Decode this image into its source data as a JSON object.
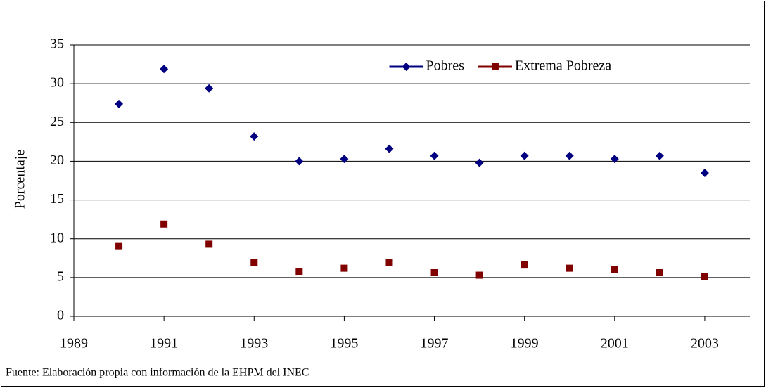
{
  "chart_data": {
    "type": "line",
    "y_label": "Porcentaje",
    "annotations": [
      "Fuente: Elaboración propia con información de la EHPM del INEC"
    ],
    "x": [
      1990,
      1991,
      1992,
      1993,
      1994,
      1995,
      1996,
      1997,
      1998,
      1999,
      2000,
      2001,
      2002,
      2003
    ],
    "series": [
      {
        "name": "Pobres",
        "color": "#000080",
        "marker": "diamond",
        "values": [
          27.4,
          31.9,
          29.4,
          23.2,
          20.0,
          20.3,
          21.6,
          20.7,
          19.8,
          20.7,
          20.7,
          20.3,
          20.7,
          18.5
        ]
      },
      {
        "name": "Extrema Pobreza",
        "color": "#800000",
        "marker": "square",
        "values": [
          9.1,
          11.9,
          9.3,
          6.9,
          5.8,
          6.2,
          6.9,
          5.7,
          5.3,
          6.7,
          6.2,
          6.0,
          5.7,
          5.1
        ]
      }
    ],
    "xlim": [
      1989,
      2004
    ],
    "xticks": [
      1989,
      1991,
      1993,
      1995,
      1997,
      1999,
      2001,
      2003
    ],
    "ylim": [
      0,
      35
    ],
    "yticks": [
      0,
      5,
      10,
      15,
      20,
      25,
      30,
      35
    ],
    "grid": true,
    "legend": "upper center"
  }
}
